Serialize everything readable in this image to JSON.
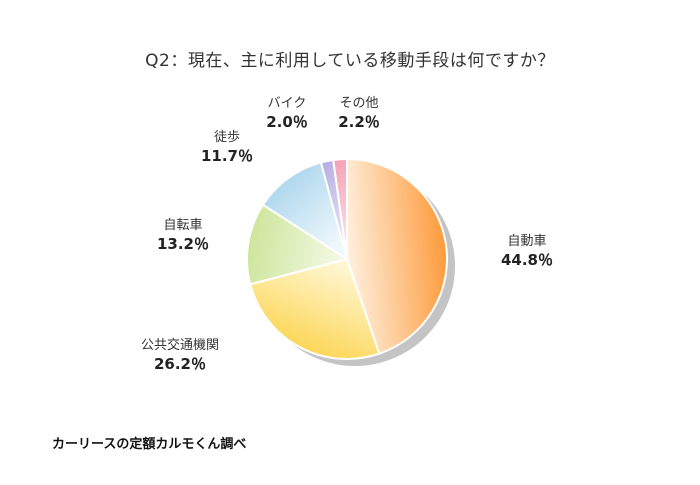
{
  "chart_data": {
    "type": "pie",
    "title": "Q2：現在、主に利用している移動手段は何ですか？",
    "slices": [
      {
        "label": "自動車",
        "value": 44.8,
        "value_label": "44.8％",
        "color": "#fd9a3a",
        "color_light": "#fff1e0"
      },
      {
        "label": "公共交通機関",
        "value": 26.2,
        "value_label": "26.2％",
        "color": "#fcd34a",
        "color_light": "#fff7d4"
      },
      {
        "label": "自転車",
        "value": 13.2,
        "value_label": "13.2％",
        "color": "#cde59a",
        "color_light": "#f5fae8"
      },
      {
        "label": "徒歩",
        "value": 11.7,
        "value_label": "11.7％",
        "color": "#a8d4ec",
        "color_light": "#eef7fc"
      },
      {
        "label": "バイク",
        "value": 2.0,
        "value_label": "2.0％",
        "color": "#b8b0e4",
        "color_light": "#eeebfa"
      },
      {
        "label": "その他",
        "value": 2.2,
        "value_label": "2.2％",
        "color": "#f4a2b6",
        "color_light": "#fde8ee"
      }
    ],
    "start": "top",
    "direction": "clockwise",
    "shadow": true
  },
  "footer": {
    "source": "カーリースの定額カルモくん調べ"
  }
}
